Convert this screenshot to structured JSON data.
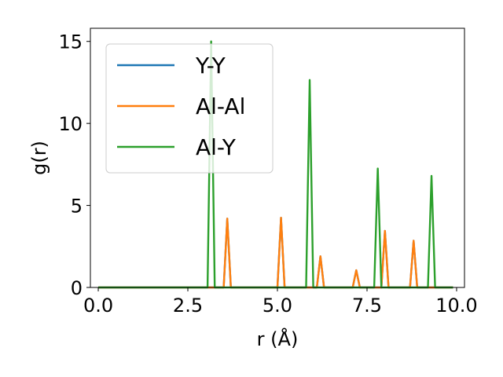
{
  "chart_data": {
    "type": "line",
    "xlabel": "r (Å)",
    "ylabel": "g(r)",
    "xlim": [
      -0.22,
      10.22
    ],
    "ylim": [
      0,
      15.8
    ],
    "xticks": [
      0.0,
      2.5,
      5.0,
      7.5,
      10.0
    ],
    "xtick_labels": [
      "0.0",
      "2.5",
      "5.0",
      "7.5",
      "10.0"
    ],
    "yticks": [
      0,
      5,
      10,
      15
    ],
    "ytick_labels": [
      "0",
      "5",
      "10",
      "15"
    ],
    "grid": false,
    "legend_position": "upper-left",
    "colors": {
      "y_y": "#1f77b4",
      "al_al": "#ff7f0e",
      "al_y": "#2ca02c"
    },
    "series": [
      {
        "name": "Y-Y",
        "color": "#1f77b4",
        "x": [
          0,
          3.45,
          3.5,
          3.6,
          3.7,
          3.75,
          4.95,
          5.0,
          5.1,
          5.2,
          5.25,
          6.05,
          6.1,
          6.2,
          6.3,
          6.35,
          7.05,
          7.1,
          7.2,
          7.3,
          7.35,
          7.85,
          7.9,
          8.0,
          8.1,
          8.15,
          8.65,
          8.7,
          8.8,
          8.9,
          8.95,
          9.9
        ],
        "y": [
          0,
          0,
          0,
          4.2,
          0,
          0,
          0,
          0,
          4.25,
          0,
          0,
          0,
          0,
          1.9,
          0,
          0,
          0,
          0,
          1.05,
          0,
          0,
          0,
          0,
          3.45,
          0,
          0,
          0,
          0,
          2.85,
          0,
          0,
          0
        ]
      },
      {
        "name": "Al-Al",
        "color": "#ff7f0e",
        "x": [
          0,
          3.45,
          3.5,
          3.6,
          3.7,
          3.75,
          4.95,
          5.0,
          5.1,
          5.2,
          5.25,
          6.05,
          6.1,
          6.2,
          6.3,
          6.35,
          7.05,
          7.1,
          7.2,
          7.3,
          7.35,
          7.85,
          7.9,
          8.0,
          8.1,
          8.15,
          8.65,
          8.7,
          8.8,
          8.9,
          8.95,
          9.9
        ],
        "y": [
          0,
          0,
          0,
          4.2,
          0,
          0,
          0,
          0,
          4.25,
          0,
          0,
          0,
          0,
          1.9,
          0,
          0,
          0,
          0,
          1.05,
          0,
          0,
          0,
          0,
          3.45,
          0,
          0,
          0,
          0,
          2.85,
          0,
          0,
          0
        ]
      },
      {
        "name": "Al-Y",
        "color": "#2ca02c",
        "x": [
          0,
          3.0,
          3.05,
          3.15,
          3.25,
          3.3,
          5.75,
          5.8,
          5.9,
          6.0,
          6.05,
          7.65,
          7.7,
          7.8,
          7.9,
          7.95,
          9.15,
          9.2,
          9.3,
          9.4,
          9.45,
          9.9
        ],
        "y": [
          0,
          0,
          0,
          15.0,
          0,
          0,
          0,
          0,
          12.65,
          0,
          0,
          0,
          0,
          7.25,
          0,
          0,
          0,
          0,
          6.8,
          0,
          0,
          0
        ]
      }
    ]
  }
}
